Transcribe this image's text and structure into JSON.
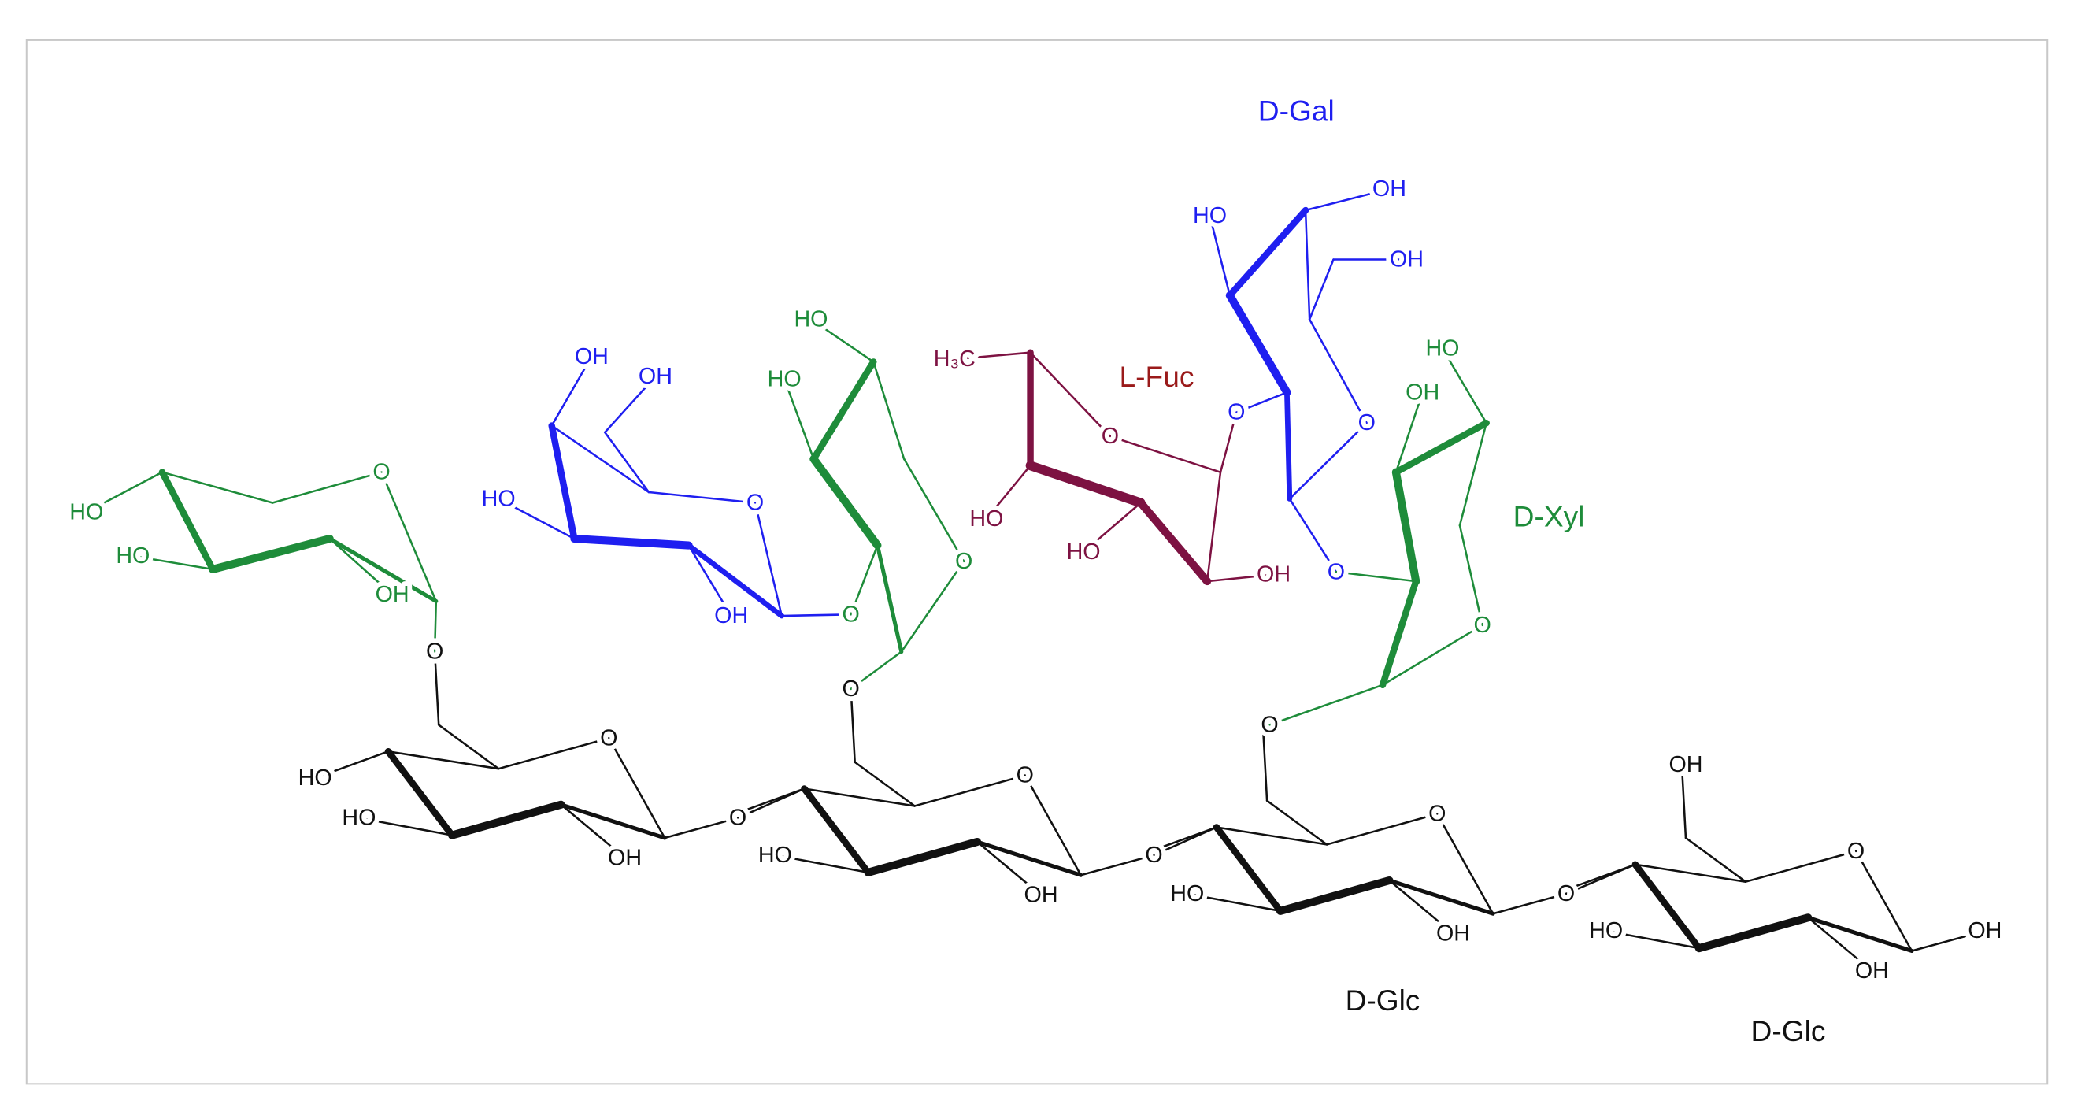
{
  "names": [
    "D-Gal",
    "L-Fuc",
    "D-Xyl",
    "D-Glc",
    "D-Glc"
  ],
  "atoms": [
    "HO",
    "HO",
    "OH",
    "O",
    "O",
    "HO",
    "O",
    "HO",
    "OH",
    "O",
    "OH",
    "OH",
    "HO",
    "O",
    "OH",
    "HO",
    "HO",
    "O",
    "O",
    "O",
    "HO",
    "O",
    "OH",
    "O",
    "H₃C",
    "O",
    "HO",
    "HO",
    "OH",
    "O",
    "HO",
    "OH",
    "OH",
    "O",
    "O",
    "HO",
    "OH",
    "O",
    "O",
    "HO",
    "O",
    "OH",
    "O",
    "OH",
    "HO",
    "O",
    "OH",
    "OH"
  ]
}
